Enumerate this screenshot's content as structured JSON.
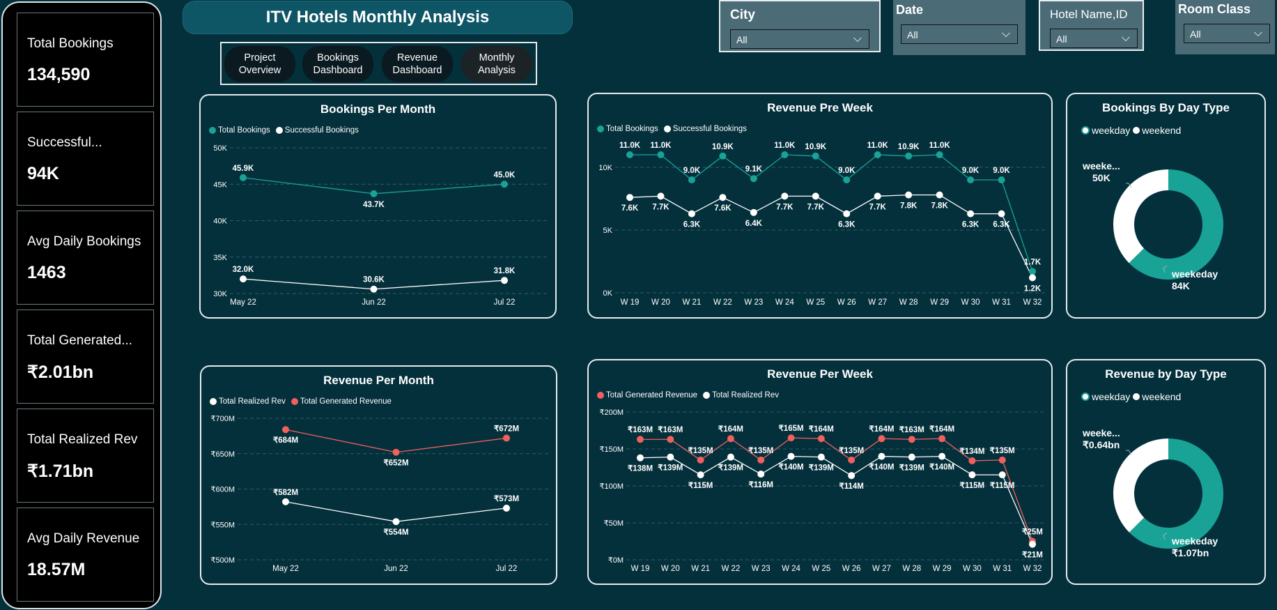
{
  "kpis": [
    {
      "label": "Total Bookings",
      "value": "134,590"
    },
    {
      "label": "Successful...",
      "value": "94K"
    },
    {
      "label": "Avg Daily Bookings",
      "value": "1463"
    },
    {
      "label": "Total Generated...",
      "value": "₹2.01bn"
    },
    {
      "label": "Total Realized Rev",
      "value": "₹1.71bn"
    },
    {
      "label": "Avg Daily Revenue",
      "value": "18.57M"
    }
  ],
  "header": {
    "title": "ITV Hotels Monthly Analysis"
  },
  "nav": [
    {
      "line1": "Project",
      "line2": "Overview"
    },
    {
      "line1": "Bookings",
      "line2": "Dashboard"
    },
    {
      "line1": "Revenue",
      "line2": "Dashboard"
    },
    {
      "line1": "Monthly",
      "line2": "Analysis"
    }
  ],
  "slicers": {
    "city": {
      "label": "City",
      "value": "All"
    },
    "date": {
      "label": "Date",
      "value": "All"
    },
    "hotel": {
      "label": "Hotel Name,ID",
      "value": "All"
    },
    "room": {
      "label": "Room Class",
      "value": "All"
    }
  },
  "icons": {
    "dropdown": "chevron-down-icon"
  },
  "colors": {
    "teal": "#19a397",
    "white": "#ffffff",
    "red": "#f0605e",
    "background": "#04303c"
  },
  "chart_data": [
    {
      "id": "bookings_month",
      "type": "line",
      "title": "Bookings Per Month",
      "categories": [
        "May 22",
        "Jun 22",
        "Jul 22"
      ],
      "ylim": [
        30000,
        50000
      ],
      "yticks": [
        30000,
        35000,
        40000,
        45000,
        50000
      ],
      "ytick_labels": [
        "30K",
        "35K",
        "40K",
        "45K",
        "50K"
      ],
      "series": [
        {
          "name": "Total Bookings",
          "color": "#19a397",
          "values": [
            45900,
            43700,
            45000
          ],
          "labels": [
            "45.9K",
            "43.7K",
            "45.0K"
          ],
          "label_pos": [
            "above",
            "below",
            "above"
          ]
        },
        {
          "name": "Successful Bookings",
          "color": "#ffffff",
          "values": [
            32000,
            30600,
            31800
          ],
          "labels": [
            "32.0K",
            "30.6K",
            "31.8K"
          ],
          "label_pos": [
            "above",
            "above",
            "above"
          ]
        }
      ]
    },
    {
      "id": "bookings_week",
      "type": "line",
      "title": "Revenue Pre Week",
      "categories": [
        "W 19",
        "W 20",
        "W 21",
        "W 22",
        "W 23",
        "W 24",
        "W 25",
        "W 26",
        "W 27",
        "W 28",
        "W 29",
        "W 30",
        "W 31",
        "W 32"
      ],
      "ylim": [
        0,
        12500
      ],
      "yticks": [
        0,
        5000,
        10000
      ],
      "ytick_labels": [
        "0K",
        "5K",
        "10K"
      ],
      "series": [
        {
          "name": "Total Bookings",
          "color": "#19a397",
          "values": [
            11000,
            11000,
            9000,
            10900,
            9100,
            11000,
            10900,
            9000,
            11000,
            10900,
            11000,
            9000,
            9000,
            1700
          ],
          "labels": [
            "11.0K",
            "11.0K",
            "9.0K",
            "10.9K",
            "9.1K",
            "11.0K",
            "10.9K",
            "9.0K",
            "11.0K",
            "10.9K",
            "11.0K",
            "9.0K",
            "9.0K",
            "1.7K"
          ],
          "label_pos": [
            "above",
            "above",
            "above",
            "above",
            "above",
            "above",
            "above",
            "above",
            "above",
            "above",
            "above",
            "above",
            "above",
            "above"
          ]
        },
        {
          "name": "Successful Bookings",
          "color": "#ffffff",
          "values": [
            7600,
            7700,
            6300,
            7600,
            6400,
            7700,
            7700,
            6300,
            7700,
            7800,
            7800,
            6300,
            6300,
            1200
          ],
          "labels": [
            "7.6K",
            "7.7K",
            "6.3K",
            "7.6K",
            "6.4K",
            "7.7K",
            "7.7K",
            "6.3K",
            "7.7K",
            "7.8K",
            "7.8K",
            "6.3K",
            "6.3K",
            "1.2K"
          ],
          "label_pos": [
            "below",
            "below",
            "below",
            "below",
            "below",
            "below",
            "below",
            "below",
            "below",
            "below",
            "below",
            "below",
            "below",
            "below"
          ]
        }
      ]
    },
    {
      "id": "revenue_month",
      "type": "line",
      "title": "Revenue Per Month",
      "categories": [
        "May 22",
        "Jun 22",
        "Jul 22"
      ],
      "ylim": [
        500,
        700
      ],
      "yticks": [
        500,
        550,
        600,
        650,
        700
      ],
      "ytick_labels": [
        "₹500M",
        "₹550M",
        "₹600M",
        "₹650M",
        "₹700M"
      ],
      "series": [
        {
          "name": "Total Realized Rev",
          "color": "#ffffff",
          "values": [
            582,
            554,
            573
          ],
          "labels": [
            "₹582M",
            "₹554M",
            "₹573M"
          ],
          "label_pos": [
            "above",
            "below",
            "above"
          ]
        },
        {
          "name": "Total Generated Revenue",
          "color": "#f0605e",
          "values": [
            684,
            652,
            672
          ],
          "labels": [
            "₹684M",
            "₹652M",
            "₹672M"
          ],
          "label_pos": [
            "below",
            "below",
            "above"
          ]
        }
      ]
    },
    {
      "id": "revenue_week",
      "type": "line",
      "title": "Revenue Per Week",
      "categories": [
        "W 19",
        "W 20",
        "W 21",
        "W 22",
        "W 23",
        "W 24",
        "W 25",
        "W 26",
        "W 27",
        "W 28",
        "W 29",
        "W 30",
        "W 31",
        "W 32"
      ],
      "ylim": [
        0,
        200
      ],
      "yticks": [
        0,
        50,
        100,
        150,
        200
      ],
      "ytick_labels": [
        "₹0M",
        "₹50M",
        "₹100M",
        "₹150M",
        "₹200M"
      ],
      "series": [
        {
          "name": "Total Generated Revenue",
          "color": "#f0605e",
          "values": [
            163,
            163,
            135,
            164,
            135,
            165,
            164,
            135,
            164,
            163,
            164,
            134,
            135,
            25
          ],
          "labels": [
            "₹163M",
            "₹163M",
            "₹135M",
            "₹164M",
            "₹135M",
            "₹165M",
            "₹164M",
            "₹135M",
            "₹164M",
            "₹163M",
            "₹164M",
            "₹134M",
            "₹135M",
            "₹25M"
          ],
          "label_pos": [
            "above",
            "above",
            "above",
            "above",
            "above",
            "above",
            "above",
            "above",
            "above",
            "above",
            "above",
            "above",
            "above",
            "above"
          ]
        },
        {
          "name": "Total Realized Rev",
          "color": "#ffffff",
          "values": [
            138,
            139,
            115,
            139,
            116,
            140,
            139,
            114,
            140,
            139,
            140,
            115,
            115,
            21
          ],
          "labels": [
            "₹138M",
            "₹139M",
            "₹115M",
            "₹139M",
            "₹116M",
            "₹140M",
            "₹139M",
            "₹114M",
            "₹140M",
            "₹139M",
            "₹140M",
            "₹115M",
            "₹115M",
            "₹21M"
          ],
          "label_pos": [
            "below",
            "below",
            "below",
            "below",
            "below",
            "below",
            "below",
            "below",
            "below",
            "below",
            "below",
            "below",
            "below",
            "below"
          ]
        }
      ]
    },
    {
      "id": "bookings_daytype",
      "type": "pie",
      "title": "Bookings By Day Type",
      "series": [
        {
          "name": "weekday",
          "value": 84,
          "label_name": "weekeday",
          "label_value": "84K",
          "color": "#19a397"
        },
        {
          "name": "weekend",
          "value": 50,
          "label_name": "weeke...",
          "label_value": "50K",
          "color": "#ffffff"
        }
      ]
    },
    {
      "id": "revenue_daytype",
      "type": "pie",
      "title": "Revenue by Day Type",
      "series": [
        {
          "name": "weekday",
          "value": 1.07,
          "label_name": "weekeday",
          "label_value": "₹1.07bn",
          "color": "#19a397"
        },
        {
          "name": "weekend",
          "value": 0.64,
          "label_name": "weeke...",
          "label_value": "₹0.64bn",
          "color": "#ffffff"
        }
      ]
    }
  ]
}
